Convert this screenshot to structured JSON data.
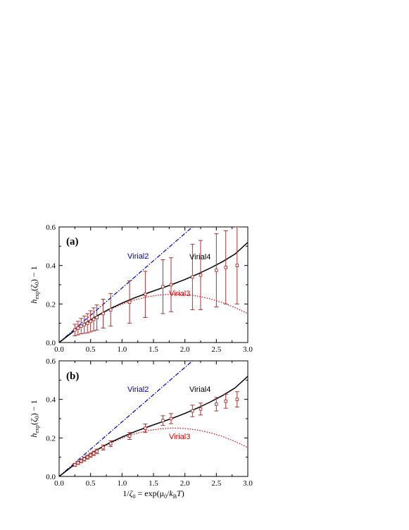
{
  "chart_data": [
    {
      "type": "line",
      "panel_label": "(a)",
      "xlabel": "",
      "ylabel": "h_exp(ζ₀) − 1",
      "xlim": [
        0,
        3.0
      ],
      "ylim": [
        0,
        0.6
      ],
      "xticks": [
        0.0,
        0.5,
        1.0,
        1.5,
        2.0,
        2.5,
        3.0
      ],
      "yticks": [
        0.0,
        0.2,
        0.4,
        0.6
      ],
      "xtick_labels": [
        "0.0",
        "0.5",
        "1.0",
        "1.5",
        "2.0",
        "2.5",
        "3.0"
      ],
      "ytick_labels": [
        "0.0",
        "0.2",
        "0.4",
        "0.6"
      ],
      "series": [
        {
          "name": "Virial2",
          "style": "dash-dot",
          "color": "#0000cc",
          "x": [
            0.0,
            2.12
          ],
          "y": [
            0.0,
            0.6
          ]
        },
        {
          "name": "Virial3",
          "style": "dotted",
          "color": "#dd0000",
          "x": [
            0.0,
            0.2,
            0.4,
            0.6,
            0.8,
            1.0,
            1.2,
            1.4,
            1.6,
            1.8,
            2.0,
            2.2,
            2.4,
            2.6,
            2.8,
            3.0
          ],
          "y": [
            0.0,
            0.051,
            0.097,
            0.137,
            0.171,
            0.199,
            0.221,
            0.237,
            0.247,
            0.251,
            0.249,
            0.241,
            0.227,
            0.207,
            0.181,
            0.15
          ]
        },
        {
          "name": "Virial4",
          "style": "solid",
          "color": "#000000",
          "x": [
            0.0,
            0.2,
            0.4,
            0.6,
            0.8,
            1.0,
            1.2,
            1.4,
            1.6,
            1.8,
            2.0,
            2.2,
            2.4,
            2.6,
            2.8,
            3.0
          ],
          "y": [
            0.0,
            0.051,
            0.097,
            0.138,
            0.174,
            0.205,
            0.232,
            0.256,
            0.279,
            0.302,
            0.327,
            0.355,
            0.386,
            0.42,
            0.46,
            0.52
          ]
        },
        {
          "name": "",
          "style": "markers-errorbars",
          "color": "#aa3333",
          "x": [
            0.25,
            0.3,
            0.35,
            0.4,
            0.45,
            0.5,
            0.55,
            0.6,
            0.7,
            0.82,
            1.12,
            1.37,
            1.65,
            1.78,
            2.12,
            2.25,
            2.5,
            2.65,
            2.83
          ],
          "y": [
            0.065,
            0.075,
            0.085,
            0.093,
            0.1,
            0.11,
            0.12,
            0.13,
            0.15,
            0.17,
            0.21,
            0.25,
            0.29,
            0.3,
            0.34,
            0.35,
            0.375,
            0.39,
            0.4
          ],
          "err": [
            0.03,
            0.035,
            0.04,
            0.045,
            0.05,
            0.055,
            0.06,
            0.065,
            0.075,
            0.085,
            0.11,
            0.12,
            0.14,
            0.14,
            0.17,
            0.18,
            0.19,
            0.19,
            0.2
          ]
        }
      ]
    },
    {
      "type": "line",
      "panel_label": "(b)",
      "xlabel": "1/ζ₀ = exp(μ₀/k_BT)",
      "ylabel": "h_exp(ζ₀) − 1",
      "xlim": [
        0,
        3.0
      ],
      "ylim": [
        0,
        0.6
      ],
      "xticks": [
        0.0,
        0.5,
        1.0,
        1.5,
        2.0,
        2.5,
        3.0
      ],
      "yticks": [
        0.0,
        0.2,
        0.4,
        0.6
      ],
      "xtick_labels": [
        "0.0",
        "0.5",
        "1.0",
        "1.5",
        "2.0",
        "2.5",
        "3.0"
      ],
      "ytick_labels": [
        "0.0",
        "0.2",
        "0.4",
        "0.6"
      ],
      "series": [
        {
          "name": "Virial2",
          "style": "dash-dot",
          "color": "#0000cc",
          "x": [
            0.0,
            2.12
          ],
          "y": [
            0.0,
            0.6
          ]
        },
        {
          "name": "Virial3",
          "style": "dotted",
          "color": "#dd0000",
          "x": [
            0.0,
            0.2,
            0.4,
            0.6,
            0.8,
            1.0,
            1.2,
            1.4,
            1.6,
            1.8,
            2.0,
            2.2,
            2.4,
            2.6,
            2.8,
            3.0
          ],
          "y": [
            0.0,
            0.051,
            0.097,
            0.137,
            0.171,
            0.199,
            0.221,
            0.237,
            0.247,
            0.251,
            0.249,
            0.241,
            0.227,
            0.207,
            0.181,
            0.15
          ]
        },
        {
          "name": "Virial4",
          "style": "solid",
          "color": "#000000",
          "x": [
            0.0,
            0.2,
            0.4,
            0.6,
            0.8,
            1.0,
            1.2,
            1.4,
            1.6,
            1.8,
            2.0,
            2.2,
            2.4,
            2.6,
            2.8,
            3.0
          ],
          "y": [
            0.0,
            0.051,
            0.097,
            0.138,
            0.174,
            0.205,
            0.232,
            0.256,
            0.279,
            0.302,
            0.327,
            0.355,
            0.386,
            0.42,
            0.46,
            0.52
          ]
        },
        {
          "name": "",
          "style": "markers-errorbars",
          "color": "#aa3333",
          "x": [
            0.25,
            0.3,
            0.35,
            0.4,
            0.45,
            0.5,
            0.55,
            0.6,
            0.7,
            0.82,
            1.12,
            1.37,
            1.65,
            1.78,
            2.12,
            2.25,
            2.5,
            2.65,
            2.83
          ],
          "y": [
            0.06,
            0.07,
            0.08,
            0.09,
            0.1,
            0.11,
            0.12,
            0.13,
            0.15,
            0.17,
            0.21,
            0.25,
            0.29,
            0.3,
            0.34,
            0.35,
            0.375,
            0.39,
            0.4
          ],
          "err": [
            0.008,
            0.008,
            0.009,
            0.01,
            0.01,
            0.011,
            0.011,
            0.012,
            0.013,
            0.015,
            0.018,
            0.022,
            0.025,
            0.026,
            0.03,
            0.031,
            0.035,
            0.036,
            0.04
          ]
        }
      ]
    }
  ]
}
